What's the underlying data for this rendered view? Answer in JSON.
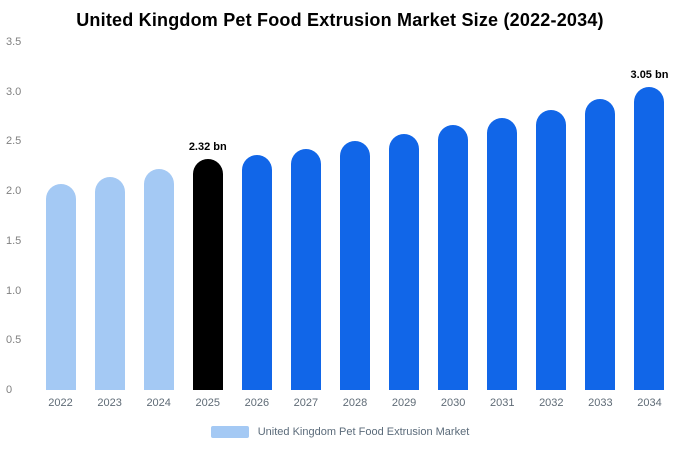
{
  "title": "United Kingdom Pet Food Extrusion Market Size (2022-2034)",
  "legend": {
    "label": "United Kingdom Pet Food Extrusion Market",
    "swatch_color": "#a4c9f4"
  },
  "colors": {
    "historical_bar": "#a4c9f4",
    "current_year_bar": "#000000",
    "forecast_bar": "#1166e8",
    "title_text": "#000000",
    "axis_text": "#808080",
    "background": "#ffffff"
  },
  "chart_data": {
    "type": "bar",
    "title": "United Kingdom Pet Food Extrusion Market Size (2022-2034)",
    "unit": "USD bn",
    "categories": [
      "2022",
      "2023",
      "2024",
      "2025",
      "2026",
      "2027",
      "2028",
      "2029",
      "2030",
      "2031",
      "2032",
      "2033",
      "2034"
    ],
    "values": [
      2.07,
      2.14,
      2.22,
      2.32,
      2.36,
      2.42,
      2.5,
      2.57,
      2.67,
      2.74,
      2.82,
      2.93,
      3.05
    ],
    "bar_colors": [
      "#a4c9f4",
      "#a4c9f4",
      "#a4c9f4",
      "#000000",
      "#1166e8",
      "#1166e8",
      "#1166e8",
      "#1166e8",
      "#1166e8",
      "#1166e8",
      "#1166e8",
      "#1166e8",
      "#1166e8"
    ],
    "annotations": [
      {
        "category": "2025",
        "text": "2.32 bn"
      },
      {
        "category": "2034",
        "text": "3.05 bn"
      }
    ],
    "xlabel": "",
    "ylabel": "",
    "ylim": [
      0,
      3.5
    ],
    "y_ticks": [
      "3.5",
      "3.0",
      "2.5",
      "2.0",
      "1.5",
      "1.0",
      "0.5",
      "0"
    ],
    "grid": false,
    "legend_position": "bottom",
    "legend_entries": [
      "United Kingdom Pet Food Extrusion Market"
    ]
  }
}
